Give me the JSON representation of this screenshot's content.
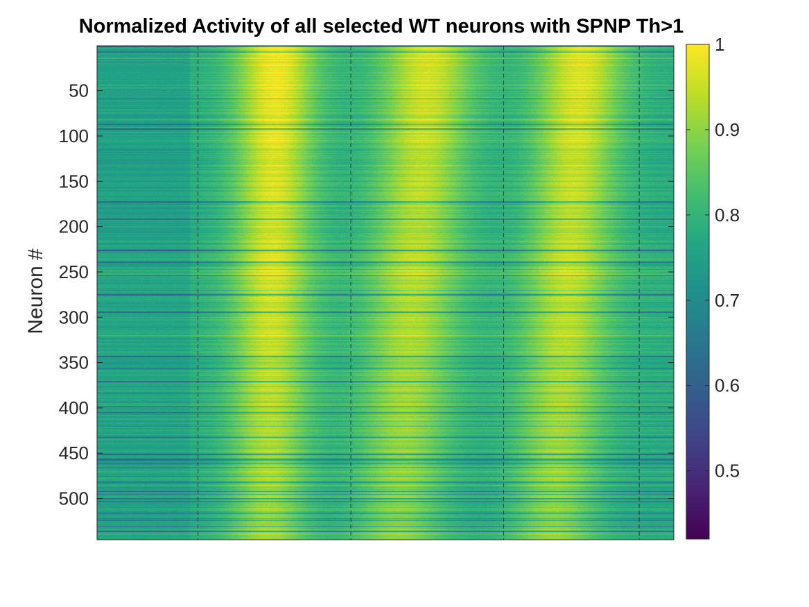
{
  "chart_data": {
    "type": "heatmap",
    "title": "Normalized Activity of all selected WT neurons with SPNP Th>1",
    "ylabel": "Neuron #",
    "xlabel": "",
    "y_range": [
      1,
      545
    ],
    "y_ticks": [
      50,
      100,
      150,
      200,
      250,
      300,
      350,
      400,
      450,
      500
    ],
    "x_tick_labels_visible": false,
    "column_range": [
      0,
      1
    ],
    "vertical_dashed_lines_at_fraction": [
      0.175,
      0.44,
      0.705,
      0.94
    ],
    "activity_peak_bands": [
      {
        "center_top": 0.31,
        "center_bottom": 0.295,
        "width": 0.07,
        "peak": 0.99
      },
      {
        "center_top": 0.575,
        "center_bottom": 0.52,
        "width": 0.08,
        "peak": 0.96
      },
      {
        "center_top": 0.84,
        "center_bottom": 0.79,
        "width": 0.075,
        "peak": 0.97
      }
    ],
    "baseline_activity": 0.78,
    "colormap": "viridis",
    "colorbar": {
      "min": 0.42,
      "max": 1.0,
      "ticks": [
        0.5,
        0.6,
        0.7,
        0.8,
        0.9,
        1
      ],
      "tick_labels": [
        "0.5",
        "0.6",
        "0.7",
        "0.8",
        "0.9",
        "1"
      ]
    }
  }
}
